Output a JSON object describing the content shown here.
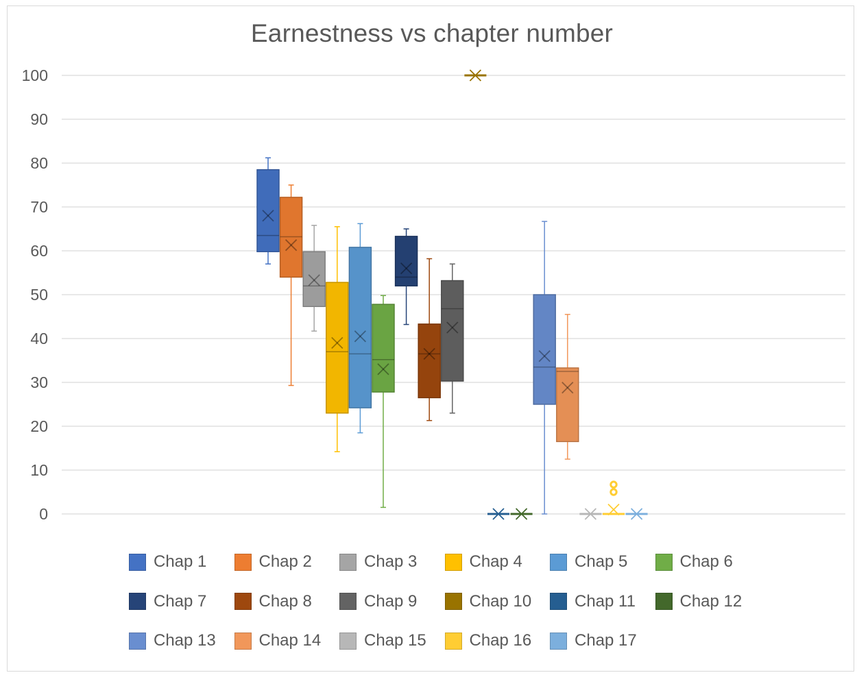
{
  "chart_data": {
    "type": "box",
    "title": "Earnestness vs chapter number",
    "xlabel": "",
    "ylabel": "",
    "ylim": [
      0,
      100
    ],
    "yticks": [
      0,
      10,
      20,
      30,
      40,
      50,
      60,
      70,
      80,
      90,
      100
    ],
    "grid": true,
    "legend_position": "bottom",
    "series": [
      {
        "name": "Chap 1",
        "color": "#4472c4",
        "min": 57,
        "q1": 59.8,
        "median": 63.5,
        "q3": 78.5,
        "max": 81.2,
        "mean": 68
      },
      {
        "name": "Chap 2",
        "color": "#ed7d31",
        "min": 29.3,
        "q1": 54,
        "median": 63.2,
        "q3": 72.2,
        "max": 75,
        "mean": 61.3
      },
      {
        "name": "Chap 3",
        "color": "#a5a5a5",
        "min": 41.7,
        "q1": 47.3,
        "median": 52,
        "q3": 59.8,
        "max": 65.8,
        "mean": 53.3
      },
      {
        "name": "Chap 4",
        "color": "#ffc000",
        "min": 14.2,
        "q1": 23,
        "median": 37,
        "q3": 52.8,
        "max": 65.5,
        "mean": 39
      },
      {
        "name": "Chap 5",
        "color": "#5b9bd5",
        "min": 18.5,
        "q1": 24.2,
        "median": 36.5,
        "q3": 60.8,
        "max": 66.2,
        "mean": 40.5
      },
      {
        "name": "Chap 6",
        "color": "#70ad47",
        "min": 1.5,
        "q1": 27.8,
        "median": 35.2,
        "q3": 47.8,
        "max": 49.8,
        "mean": 33
      },
      {
        "name": "Chap 7",
        "color": "#264478",
        "min": 43.2,
        "q1": 52,
        "median": 54,
        "q3": 63.3,
        "max": 65,
        "mean": 56
      },
      {
        "name": "Chap 8",
        "color": "#9e480e",
        "min": 21.3,
        "q1": 26.5,
        "median": 36.5,
        "q3": 43.3,
        "max": 58.2,
        "mean": 36.5
      },
      {
        "name": "Chap 9",
        "color": "#636363",
        "min": 23,
        "q1": 30.3,
        "median": 46.8,
        "q3": 53.2,
        "max": 57,
        "mean": 42.5
      },
      {
        "name": "Chap 10",
        "color": "#997300",
        "min": 100,
        "q1": 100,
        "median": 100,
        "q3": 100,
        "max": 100,
        "mean": 100
      },
      {
        "name": "Chap 11",
        "color": "#255e91",
        "min": 0,
        "q1": 0,
        "median": 0,
        "q3": 0,
        "max": 0,
        "mean": 0
      },
      {
        "name": "Chap 12",
        "color": "#43682b",
        "min": 0,
        "q1": 0,
        "median": 0,
        "q3": 0,
        "max": 0,
        "mean": 0
      },
      {
        "name": "Chap 13",
        "color": "#698ed0",
        "min": 0,
        "q1": 25,
        "median": 33.5,
        "q3": 50,
        "max": 66.7,
        "mean": 36
      },
      {
        "name": "Chap 14",
        "color": "#f1975a",
        "min": 12.5,
        "q1": 16.5,
        "median": 32.5,
        "q3": 33.3,
        "max": 45.5,
        "mean": 28.8
      },
      {
        "name": "Chap 15",
        "color": "#b7b7b7",
        "min": 0,
        "q1": 0,
        "median": 0,
        "q3": 0,
        "max": 0,
        "mean": 0
      },
      {
        "name": "Chap 16",
        "color": "#ffcd33",
        "min": 0,
        "q1": 0,
        "median": 0,
        "q3": 0,
        "max": 0,
        "mean": 1,
        "outliers": [
          5,
          6.7
        ]
      },
      {
        "name": "Chap 17",
        "color": "#7cafdd",
        "min": 0,
        "q1": 0,
        "median": 0,
        "q3": 0,
        "max": 0,
        "mean": 0
      }
    ]
  }
}
